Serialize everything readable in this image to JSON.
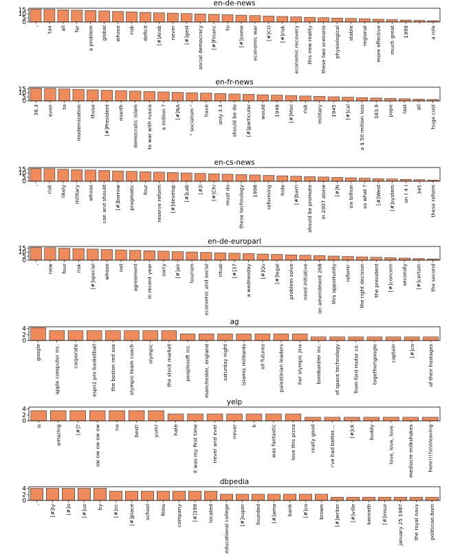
{
  "chart_data": [
    {
      "type": "bar",
      "title": "en-de-news",
      "ylim": [
        0,
        17
      ],
      "yticks": [
        0,
        5,
        10,
        15
      ],
      "categories": [
        ",",
        "tax",
        "all",
        "far",
        "a problem",
        "global",
        "whose",
        "risk",
        "deficit",
        "[#]Arab",
        "never",
        "[#]gest",
        "social democracy",
        "[#]Financ",
        "to",
        "[#]some",
        "economic war",
        "[#]CO",
        "[#]risk",
        "economic recovery",
        "this new reality",
        "these two scenario",
        "physiological",
        "stable",
        "regional",
        "more effective",
        "much great",
        "1999",
        "",
        "a role"
      ],
      "values": [
        15.8,
        15.6,
        15.0,
        14.6,
        14.2,
        13.7,
        13.0,
        12.5,
        11.9,
        11.3,
        10.9,
        10.4,
        9.9,
        9.4,
        8.9,
        8.4,
        7.9,
        7.3,
        6.8,
        6.3,
        5.8,
        5.3,
        4.8,
        4.4,
        3.9,
        3.4,
        2.9,
        2.4,
        2.0,
        1.6
      ]
    },
    {
      "type": "bar",
      "title": "en-fr-news",
      "ylim": [
        0,
        17
      ],
      "yticks": [
        0,
        5,
        10,
        15
      ],
      "categories": [
        "36.3",
        "even",
        "to",
        "modernization",
        "those",
        "[#]President",
        "month",
        "democratic islam",
        "to war with russia",
        "a million ?",
        "[#]NA",
        "\" socialism \"",
        "have",
        "only 3.3",
        "should be do",
        "[#]particular",
        "would",
        "1948",
        "[#]Mini",
        "risk",
        "military",
        "1945",
        "[#]cal",
        "a $ 50 million loss",
        "183.9",
        "pope",
        "last",
        "all",
        "huge cost"
      ],
      "values": [
        15.8,
        15.5,
        14.8,
        14.3,
        13.7,
        13.2,
        12.7,
        12.1,
        11.6,
        11.1,
        10.6,
        10.1,
        9.6,
        9.1,
        8.6,
        8.1,
        7.6,
        7.1,
        6.6,
        6.1,
        5.6,
        5.1,
        4.6,
        4.1,
        3.6,
        3.1,
        2.7,
        2.2,
        1.8
      ]
    },
    {
      "type": "bar",
      "title": "en-cs-news",
      "ylim": [
        0,
        17
      ],
      "yticks": [
        0,
        5,
        10,
        15
      ],
      "categories": [
        ",",
        "risk",
        "likely",
        "military",
        "whose",
        "can and should",
        "[#]borrow",
        "pragmatic",
        "four",
        "reserve reform",
        "[#]develop",
        "[#]Lab",
        "[#]I",
        "[#]Chi",
        "must do",
        "these technology",
        "1998",
        "reforming",
        "hide",
        "[#]barri",
        "should be promote",
        "in 2007 alone",
        "[#]N",
        "six billion",
        "so what ?",
        "[#]West",
        "[#]system",
        "on ( 4 )",
        "345",
        "these reform"
      ],
      "values": [
        15.8,
        15.5,
        14.8,
        14.3,
        13.8,
        13.3,
        12.7,
        12.2,
        11.7,
        11.2,
        10.7,
        10.2,
        9.7,
        9.2,
        8.7,
        8.2,
        7.7,
        7.2,
        6.7,
        6.2,
        5.7,
        5.2,
        4.7,
        4.2,
        3.7,
        3.2,
        2.8,
        2.3,
        1.9,
        1.5
      ]
    },
    {
      "type": "bar",
      "title": "en-de-europarl",
      "ylim": [
        0,
        17
      ],
      "yticks": [
        0,
        5,
        10,
        15
      ],
      "categories": [
        ",",
        "new",
        "four",
        "risk",
        "[#]special",
        "whose",
        "net",
        "agreement",
        "in recent year",
        "sorry",
        "[#]air",
        "tourism",
        "economic and social",
        "ritual",
        "[#]37",
        "a wednesday",
        "[#]Qu",
        "[#]legal",
        "problem solve",
        "need initiative",
        "on amendment 268",
        "this opportunity",
        "reform'",
        "the right decision",
        "the president",
        "[#]concern",
        "secondly",
        "[#]certain",
        "the second"
      ],
      "values": [
        15.8,
        15.5,
        14.8,
        14.3,
        13.7,
        13.2,
        12.7,
        12.1,
        11.6,
        11.1,
        10.6,
        10.1,
        9.6,
        9.1,
        8.6,
        8.1,
        7.6,
        7.1,
        6.6,
        6.1,
        5.6,
        5.1,
        4.6,
        4.1,
        3.6,
        3.1,
        2.6,
        2.1,
        1.6
      ]
    },
    {
      "type": "bar",
      "title": "ag",
      "ylim": [
        0,
        4.6
      ],
      "yticks": [
        0,
        2,
        4
      ],
      "categories": [
        "google",
        "apple computer inc.",
        "corporate",
        "espn2 pro basketball",
        "the boston red sox",
        "olympic team coach",
        "olympic",
        "the stock market",
        "peoplesoft inc.",
        "manchester, england",
        "saturday night",
        "islamic militants",
        "oil futures",
        "palestinian leaders",
        "her olympic jinx",
        "bombardier inc.",
        "of space technology",
        "from ford motor co.",
        "together\\google",
        "captain",
        "[#]co",
        "of their hostages"
      ],
      "values": [
        4.3,
        3.3,
        3.3,
        3.3,
        3.3,
        3.3,
        3.3,
        3.3,
        2.2,
        2.2,
        2.2,
        2.2,
        2.2,
        2.2,
        2.2,
        1.2,
        1.2,
        1.2,
        1.2,
        1.2,
        1.2,
        1.2
      ]
    },
    {
      "type": "bar",
      "title": "yelp",
      "ylim": [
        0,
        4.6
      ],
      "yticks": [
        0,
        2,
        4
      ],
      "categories": [
        "is",
        "amazing",
        "[#]?",
        "ow ow ow ow ow",
        "no",
        "best!",
        "yum!",
        "hate",
        "it was my first time",
        "never and ever",
        "never",
        "k",
        "was fantastic",
        "love this pizza",
        "really good",
        "i've had better....",
        "[#]ck",
        "buddy",
        "love, love, love.",
        "mediocre milkshakes",
        "here!!!!\\n\\nleaving"
      ],
      "values": [
        3.4,
        3.4,
        3.4,
        3.4,
        3.4,
        3.4,
        3.4,
        2.3,
        2.3,
        2.3,
        2.3,
        2.3,
        2.3,
        2.3,
        1.2,
        1.2,
        1.2,
        1.2,
        1.2,
        1.2,
        1.2
      ]
    },
    {
      "type": "bar",
      "title": "dbpedia",
      "ylim": [
        0,
        4.6
      ],
      "yticks": [
        0,
        2,
        4
      ],
      "categories": [
        ",",
        "[#]ty",
        "[#]o",
        "[#]us",
        "by",
        "[#]cc",
        "[#]place",
        "school",
        "films",
        "company",
        "[#]199",
        "located",
        "educational college",
        "[#]super",
        "founded",
        "[#]ama",
        "bank",
        "[#]co",
        "brown",
        "[#]writer",
        "[#]ville",
        "kenneth",
        "[#]insur",
        "january 25 1987",
        "the royal navy",
        "politician.born"
      ],
      "values": [
        4.1,
        4.1,
        4.1,
        4.1,
        4.1,
        3.1,
        3.1,
        3.1,
        3.1,
        3.1,
        3.1,
        3.1,
        2.1,
        2.1,
        2.1,
        2.1,
        2.1,
        2.1,
        2.1,
        1.1,
        1.1,
        1.1,
        1.1,
        1.1,
        1.1,
        1.1
      ]
    }
  ]
}
